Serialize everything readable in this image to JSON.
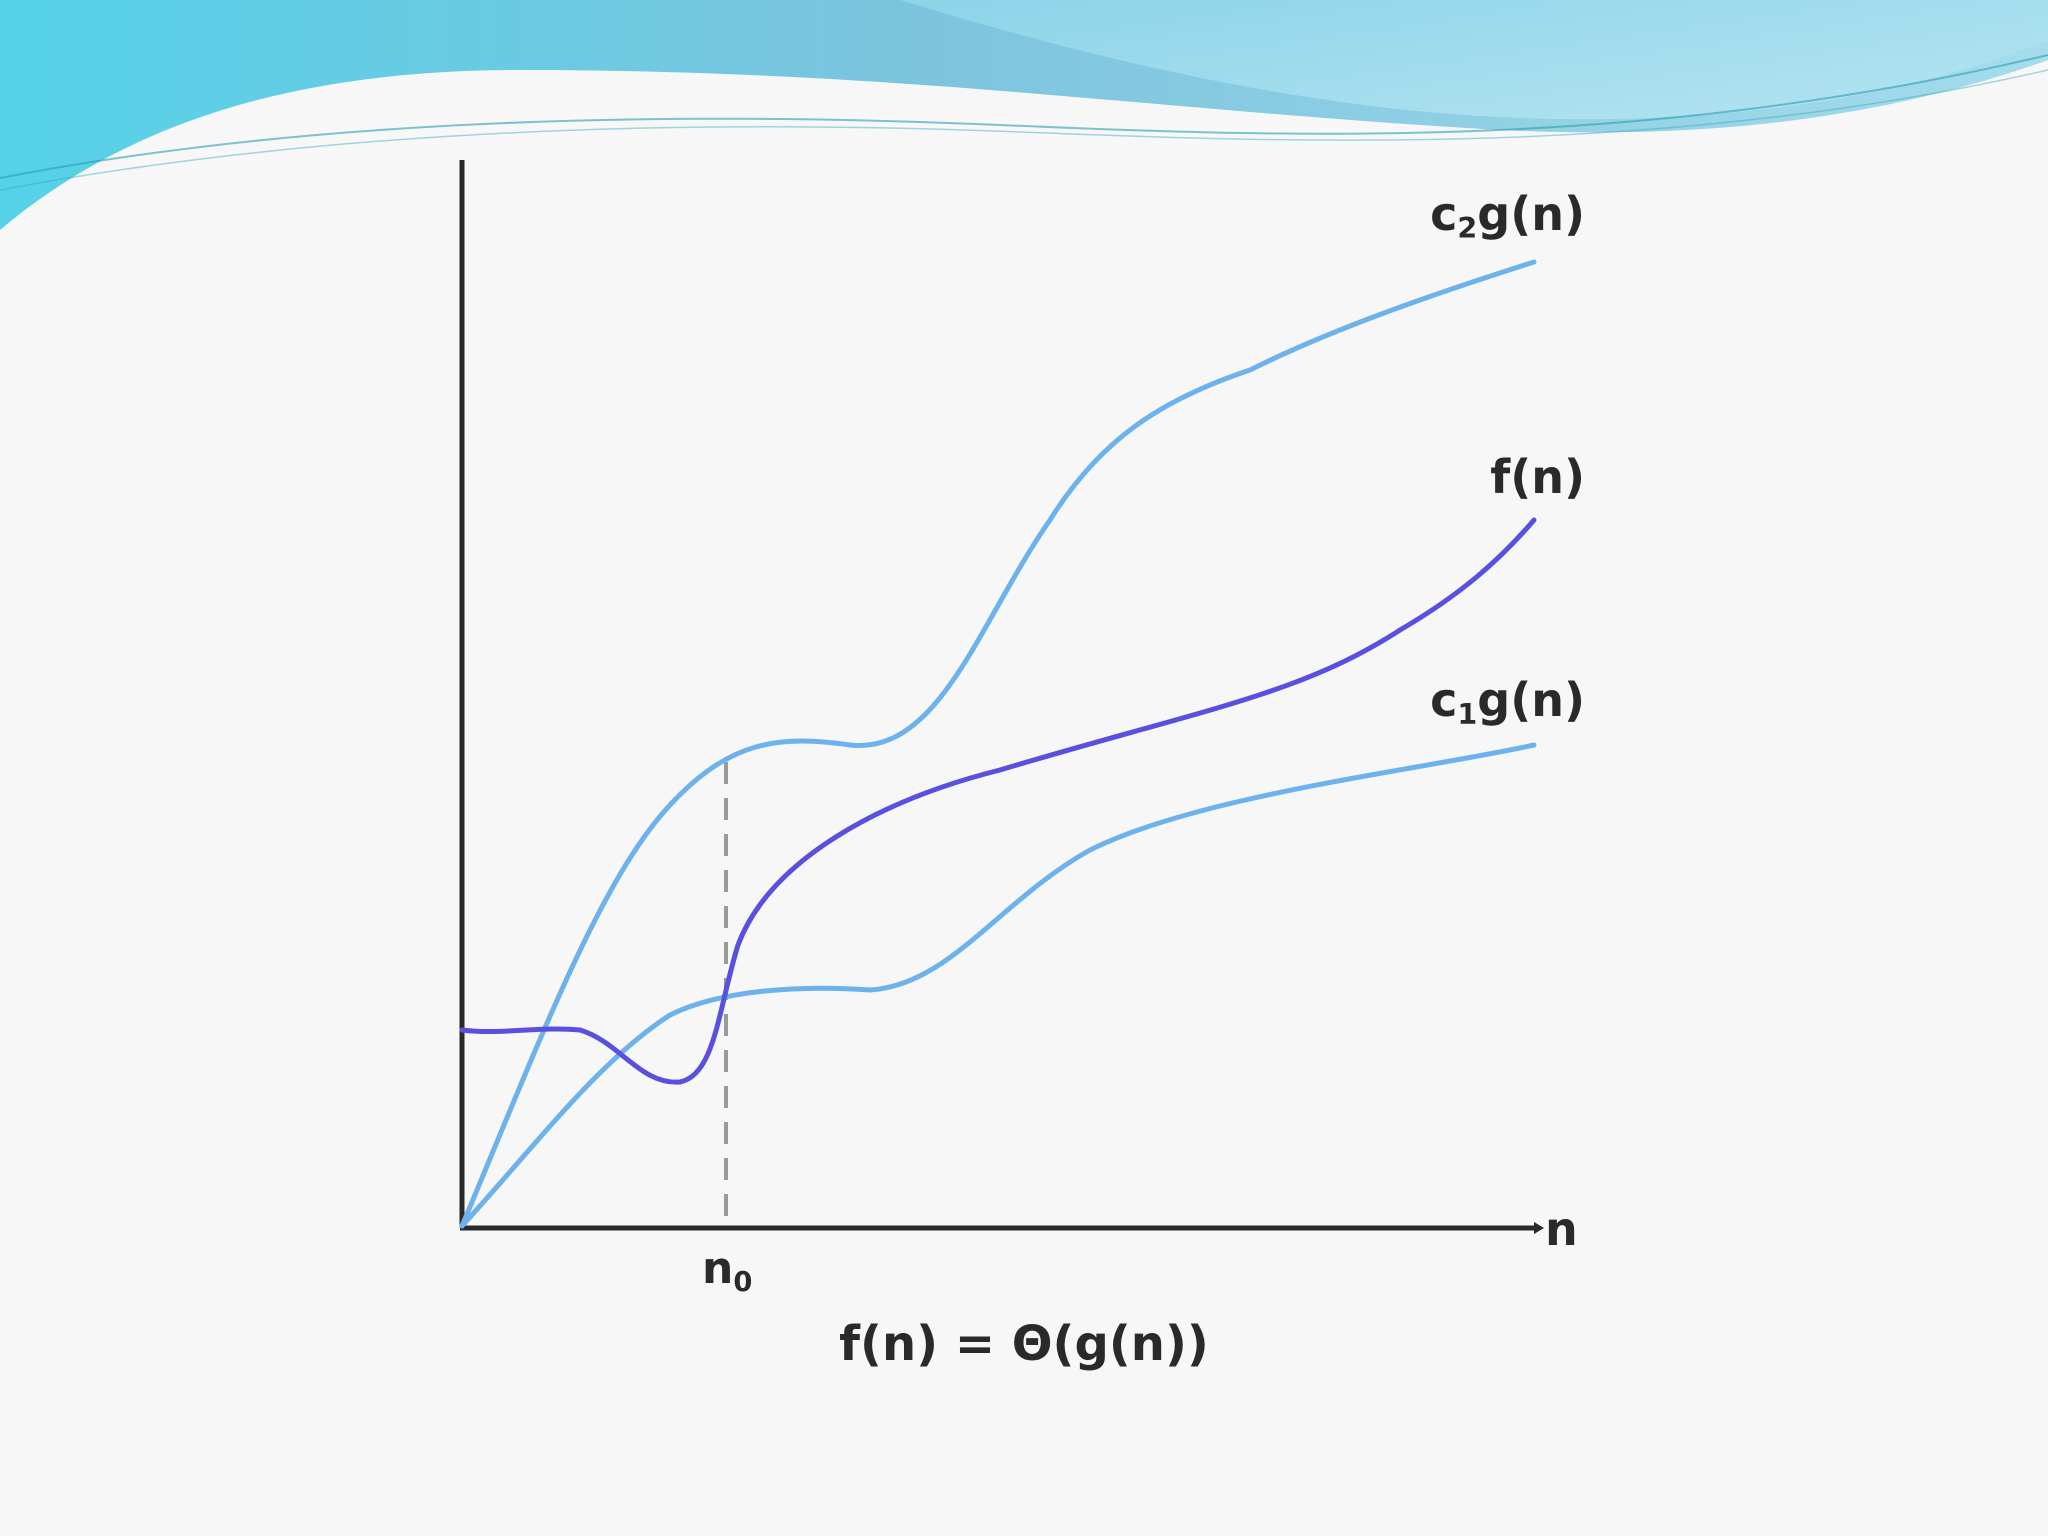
{
  "diagram": {
    "equation": "f(n) = Θ(g(n))",
    "x_axis_label": "n",
    "threshold_label": {
      "base": "n",
      "sub": "0"
    },
    "curves": [
      {
        "id": "c2g",
        "label_prefix": "c",
        "label_sub": "2",
        "label_suffix": "g(n)",
        "color": "#6db2ec"
      },
      {
        "id": "f",
        "label_prefix": "",
        "label_sub": "",
        "label_suffix": "f(n)",
        "color": "#5a50e0"
      },
      {
        "id": "c1g",
        "label_prefix": "c",
        "label_sub": "1",
        "label_suffix": "g(n)",
        "color": "#6db2ec"
      }
    ],
    "colors": {
      "axis": "#2a2a2a",
      "threshold_line": "#9a9a9a",
      "banner_dark": "#5fc6df",
      "banner_light": "#a6def0",
      "background": "#f7f7f7"
    }
  }
}
